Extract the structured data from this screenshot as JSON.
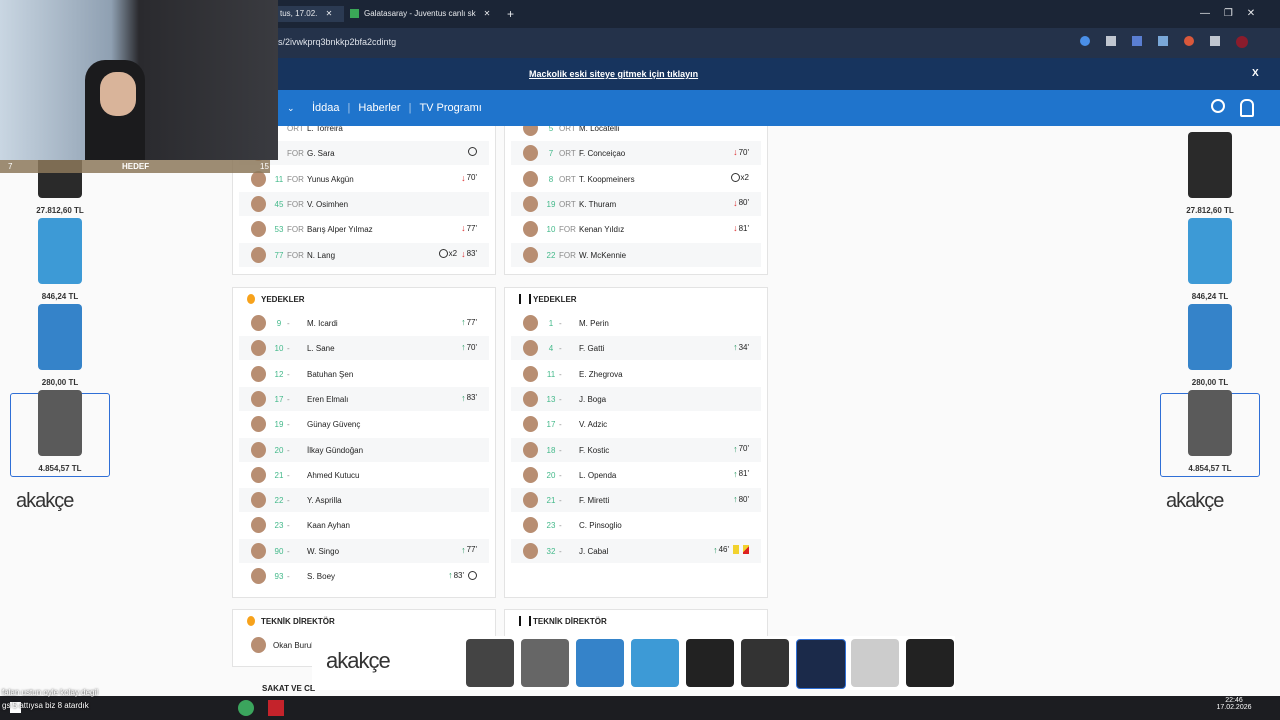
{
  "browser": {
    "tabs": [
      "tus, 17.02.",
      "Galatasaray - Juventus canlı sk"
    ],
    "url": "s/2ivwkprq3bnkkp2bfa2cdintg"
  },
  "banner": {
    "text": "Mackolik eski siteye gitmek için tıklayın",
    "close": "X"
  },
  "nav": {
    "items": [
      "İddaa",
      "Haberler",
      "TV Programı"
    ]
  },
  "webcam": {
    "left": "7",
    "label": "HEDEF",
    "right": "15"
  },
  "home": {
    "starters": [
      {
        "pos": "ORT",
        "name": "L. Torreira"
      },
      {
        "pos": "FOR",
        "name": "G. Sara",
        "events": [
          {
            "kind": "goal"
          }
        ]
      },
      {
        "number": "11",
        "pos": "FOR",
        "name": "Yunus Akgün",
        "events": [
          {
            "kind": "out",
            "label": "70'"
          }
        ]
      },
      {
        "number": "45",
        "pos": "FOR",
        "name": "V. Osimhen"
      },
      {
        "number": "53",
        "pos": "FOR",
        "name": "Barış Alper Yılmaz",
        "events": [
          {
            "kind": "out",
            "label": "77'"
          }
        ]
      },
      {
        "number": "77",
        "pos": "FOR",
        "name": "N. Lang",
        "events": [
          {
            "kind": "goal",
            "label": "x2"
          },
          {
            "kind": "out",
            "label": "83'"
          }
        ]
      }
    ],
    "subs_title": "YEDEKLER",
    "subs": [
      {
        "number": "9",
        "pos": "-",
        "name": "M. Icardi",
        "events": [
          {
            "kind": "in",
            "label": "77'"
          }
        ]
      },
      {
        "number": "10",
        "pos": "-",
        "name": "L. Sane",
        "events": [
          {
            "kind": "in",
            "label": "70'"
          }
        ]
      },
      {
        "number": "12",
        "pos": "-",
        "name": "Batuhan Şen"
      },
      {
        "number": "17",
        "pos": "-",
        "name": "Eren Elmalı",
        "events": [
          {
            "kind": "in",
            "label": "83'"
          }
        ]
      },
      {
        "number": "19",
        "pos": "-",
        "name": "Günay Güvenç"
      },
      {
        "number": "20",
        "pos": "-",
        "name": "İlkay Gündoğan"
      },
      {
        "number": "21",
        "pos": "-",
        "name": "Ahmed Kutucu"
      },
      {
        "number": "22",
        "pos": "-",
        "name": "Y. Asprilla"
      },
      {
        "number": "23",
        "pos": "-",
        "name": "Kaan Ayhan"
      },
      {
        "number": "90",
        "pos": "-",
        "name": "W. Singo",
        "events": [
          {
            "kind": "in",
            "label": "77'"
          }
        ]
      },
      {
        "number": "93",
        "pos": "-",
        "name": "S. Boey",
        "events": [
          {
            "kind": "in",
            "label": "83'"
          },
          {
            "kind": "goal"
          }
        ]
      }
    ],
    "coach_title": "TEKNİK DİREKTÖR",
    "coach": "Okan Buruk",
    "injured_title": "SAKAT VE CE"
  },
  "away": {
    "starters": [
      {
        "number": "5",
        "pos": "ORT",
        "name": "M. Locatelli"
      },
      {
        "number": "7",
        "pos": "ORT",
        "name": "F. Conceiçao",
        "events": [
          {
            "kind": "out",
            "label": "70'"
          }
        ]
      },
      {
        "number": "8",
        "pos": "ORT",
        "name": "T. Koopmeiners",
        "events": [
          {
            "kind": "goal",
            "label": "x2"
          }
        ]
      },
      {
        "number": "19",
        "pos": "ORT",
        "name": "K. Thuram",
        "events": [
          {
            "kind": "out",
            "label": "80'"
          }
        ]
      },
      {
        "number": "10",
        "pos": "FOR",
        "name": "Kenan Yıldız",
        "events": [
          {
            "kind": "out",
            "label": "81'"
          }
        ]
      },
      {
        "number": "22",
        "pos": "FOR",
        "name": "W. McKennie"
      }
    ],
    "subs_title": "YEDEKLER",
    "subs": [
      {
        "number": "1",
        "pos": "-",
        "name": "M. Perin"
      },
      {
        "number": "4",
        "pos": "-",
        "name": "F. Gatti",
        "events": [
          {
            "kind": "in",
            "label": "34'"
          }
        ]
      },
      {
        "number": "11",
        "pos": "-",
        "name": "E. Zhegrova"
      },
      {
        "number": "13",
        "pos": "-",
        "name": "J. Boga"
      },
      {
        "number": "17",
        "pos": "-",
        "name": "V. Adzic"
      },
      {
        "number": "18",
        "pos": "-",
        "name": "F. Kostic",
        "events": [
          {
            "kind": "in",
            "label": "70'"
          }
        ]
      },
      {
        "number": "20",
        "pos": "-",
        "name": "L. Openda",
        "events": [
          {
            "kind": "in",
            "label": "81'"
          }
        ]
      },
      {
        "number": "21",
        "pos": "-",
        "name": "F. Miretti",
        "events": [
          {
            "kind": "in",
            "label": "80'"
          }
        ]
      },
      {
        "number": "23",
        "pos": "-",
        "name": "C. Pinsoglio"
      },
      {
        "number": "32",
        "pos": "-",
        "name": "J. Cabal",
        "events": [
          {
            "kind": "in",
            "label": "46'"
          },
          {
            "kind": "yellow"
          },
          {
            "kind": "second-yellow"
          }
        ]
      }
    ],
    "coach_title": "TEKNİK DİREKTÖR"
  },
  "ads": {
    "logo": "akakçe",
    "left": [
      "27.812,60 TL",
      "846,24 TL",
      "280,00 TL",
      "4.854,57 TL"
    ],
    "right": [
      "27.812,60 TL",
      "846,24 TL",
      "280,00 TL",
      "4.854,57 TL"
    ]
  },
  "chat": [
    "falan ustun oyle kolay degil",
    "gs 5 attıysa biz 8 atardık"
  ],
  "taskbar": {
    "time": "22:46",
    "date": "17.02.2026"
  }
}
